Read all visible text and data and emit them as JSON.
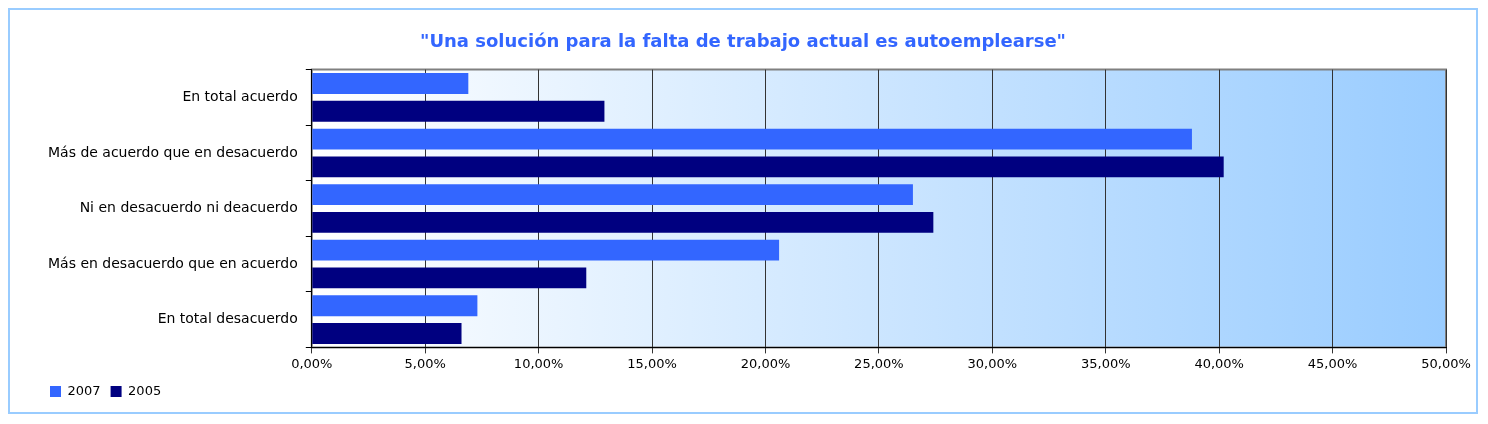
{
  "chart_data": {
    "type": "bar",
    "orientation": "horizontal",
    "title": "\"Una solución para la falta de trabajo actual es autoemplearse\"",
    "categories": [
      "En total acuerdo",
      "Más de acuerdo que en desacuerdo",
      "Ni en desacuerdo ni deacuerdo",
      "Más en desacuerdo que en acuerdo",
      "En total desacuerdo"
    ],
    "series": [
      {
        "name": "2007",
        "color": "#3366ff",
        "values": [
          6.9,
          38.8,
          26.5,
          20.6,
          7.3
        ]
      },
      {
        "name": "2005",
        "color": "#000080",
        "values": [
          12.9,
          40.2,
          27.4,
          12.1,
          6.6
        ]
      }
    ],
    "xlim": [
      0,
      50
    ],
    "xticks": [
      {
        "value": 0,
        "label": "0,00%"
      },
      {
        "value": 5,
        "label": "5,00%"
      },
      {
        "value": 10,
        "label": "10,00%"
      },
      {
        "value": 15,
        "label": "15,00%"
      },
      {
        "value": 20,
        "label": "20,00%"
      },
      {
        "value": 25,
        "label": "25,00%"
      },
      {
        "value": 30,
        "label": "30,00%"
      },
      {
        "value": 35,
        "label": "35,00%"
      },
      {
        "value": 40,
        "label": "40,00%"
      },
      {
        "value": 45,
        "label": "45,00%"
      },
      {
        "value": 50,
        "label": "50,00%"
      }
    ],
    "grid": "x",
    "legend": "bottom left"
  }
}
